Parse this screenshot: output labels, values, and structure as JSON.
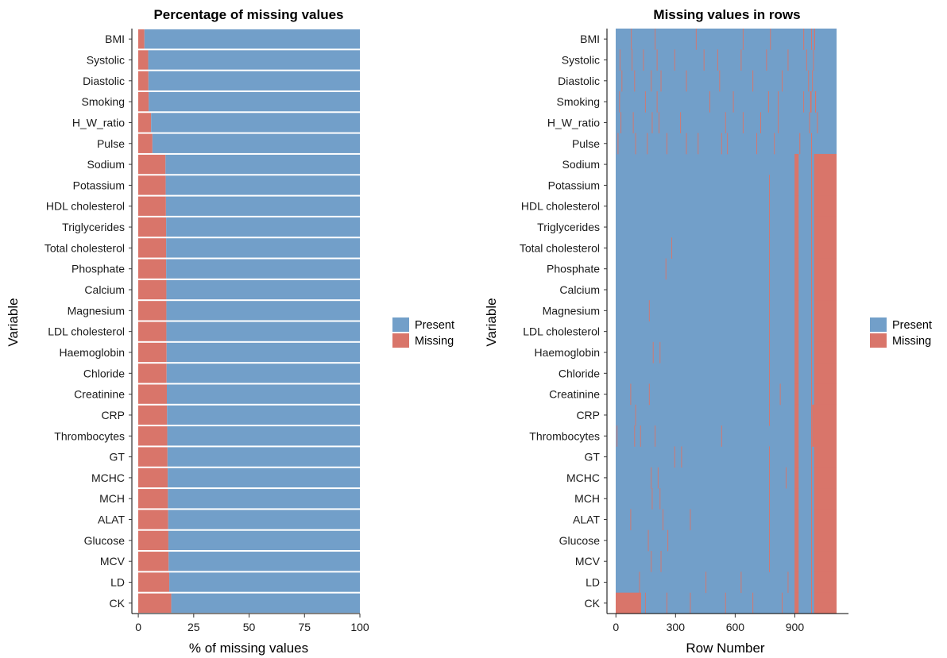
{
  "colors": {
    "present": "#729FC9",
    "missing": "#D9756A"
  },
  "legend": {
    "present": "Present",
    "missing": "Missing"
  },
  "chart_data": [
    {
      "type": "bar",
      "orientation": "horizontal-stacked",
      "title": "Percentage of missing values",
      "xlabel": "% of missing values",
      "ylabel": "Variable",
      "xlim": [
        0,
        100
      ],
      "xticks": [
        0,
        25,
        50,
        75,
        100
      ],
      "grid": false,
      "legend_position": "right",
      "categories": [
        "BMI",
        "Systolic",
        "Diastolic",
        "Smoking",
        "H_W_ratio",
        "Pulse",
        "Sodium",
        "Potassium",
        "HDL cholesterol",
        "Triglycerides",
        "Total cholesterol",
        "Phosphate",
        "Calcium",
        "Magnesium",
        "LDL cholesterol",
        "Haemoglobin",
        "Chloride",
        "Creatinine",
        "CRP",
        "Thrombocytes",
        "GT",
        "MCHC",
        "MCH",
        "ALAT",
        "Glucose",
        "MCV",
        "LD",
        "CK"
      ],
      "series": [
        {
          "name": "Missing",
          "values": [
            2.8,
            4.5,
            4.6,
            4.7,
            5.8,
            6.4,
            12.3,
            12.4,
            12.5,
            12.6,
            12.6,
            12.6,
            12.7,
            12.7,
            12.7,
            12.8,
            12.8,
            12.9,
            13.0,
            13.1,
            13.2,
            13.3,
            13.4,
            13.5,
            13.6,
            13.7,
            14.0,
            14.9
          ]
        },
        {
          "name": "Present",
          "values": [
            97.2,
            95.5,
            95.4,
            95.3,
            94.2,
            93.6,
            87.7,
            87.6,
            87.5,
            87.4,
            87.4,
            87.4,
            87.3,
            87.3,
            87.3,
            87.2,
            87.2,
            87.1,
            87.0,
            86.9,
            86.8,
            86.7,
            86.6,
            86.5,
            86.4,
            86.3,
            86.0,
            85.1
          ]
        }
      ]
    },
    {
      "type": "heatmap",
      "title": "Missing values in rows",
      "xlabel": "Row Number",
      "ylabel": "Variable",
      "xlim": [
        0,
        1130
      ],
      "xticks": [
        0,
        300,
        600,
        900
      ],
      "grid": false,
      "legend_position": "right",
      "categories": [
        "BMI",
        "Systolic",
        "Diastolic",
        "Smoking",
        "H_W_ratio",
        "Pulse",
        "Sodium",
        "Potassium",
        "HDL cholesterol",
        "Triglycerides",
        "Total cholesterol",
        "Phosphate",
        "Calcium",
        "Magnesium",
        "LDL cholesterol",
        "Haemoglobin",
        "Chloride",
        "Creatinine",
        "CRP",
        "Thrombocytes",
        "GT",
        "MCHC",
        "MCH",
        "ALAT",
        "Glucose",
        "MCV",
        "LD",
        "CK"
      ],
      "missing_row_ranges": [
        [
          [
            78,
            80
          ],
          [
            200,
            202
          ],
          [
            410,
            412
          ],
          [
            650,
            652
          ],
          [
            790,
            792
          ],
          [
            960,
            964
          ],
          [
            1000,
            1004
          ],
          [
            1015,
            1020
          ]
        ],
        [
          [
            20,
            22
          ],
          [
            82,
            84
          ],
          [
            140,
            142
          ],
          [
            210,
            213
          ],
          [
            300,
            302
          ],
          [
            450,
            452
          ],
          [
            520,
            522
          ],
          [
            640,
            642
          ],
          [
            770,
            772
          ],
          [
            880,
            882
          ],
          [
            975,
            978
          ],
          [
            1010,
            1013
          ]
        ],
        [
          [
            30,
            32
          ],
          [
            95,
            97
          ],
          [
            180,
            182
          ],
          [
            230,
            232
          ],
          [
            360,
            362
          ],
          [
            530,
            532
          ],
          [
            700,
            702
          ],
          [
            850,
            852
          ],
          [
            985,
            988
          ],
          [
            1005,
            1008
          ]
        ],
        [
          [
            18,
            20
          ],
          [
            150,
            152
          ],
          [
            210,
            212
          ],
          [
            480,
            482
          ],
          [
            600,
            602
          ],
          [
            780,
            782
          ],
          [
            830,
            832
          ],
          [
            960,
            963
          ],
          [
            995,
            1002
          ],
          [
            1020,
            1025
          ]
        ],
        [
          [
            25,
            27
          ],
          [
            88,
            90
          ],
          [
            185,
            187
          ],
          [
            220,
            222
          ],
          [
            330,
            332
          ],
          [
            560,
            562
          ],
          [
            650,
            652
          ],
          [
            740,
            742
          ],
          [
            830,
            832
          ],
          [
            990,
            994
          ],
          [
            1030,
            1034
          ]
        ],
        [
          [
            10,
            12
          ],
          [
            100,
            102
          ],
          [
            160,
            162
          ],
          [
            260,
            262
          ],
          [
            360,
            362
          ],
          [
            420,
            422
          ],
          [
            540,
            542
          ],
          [
            570,
            572
          ],
          [
            720,
            722
          ],
          [
            810,
            812
          ],
          [
            940,
            944
          ],
          [
            1000,
            1004
          ]
        ],
        [
          [
            915,
            936
          ],
          [
            1000,
            1004
          ],
          [
            1015,
            1130
          ]
        ],
        [
          [
            785,
            787
          ],
          [
            915,
            936
          ],
          [
            1000,
            1004
          ],
          [
            1015,
            1130
          ]
        ],
        [
          [
            785,
            787
          ],
          [
            915,
            936
          ],
          [
            1000,
            1004
          ],
          [
            1015,
            1130
          ]
        ],
        [
          [
            785,
            787
          ],
          [
            915,
            936
          ],
          [
            1000,
            1004
          ],
          [
            1015,
            1130
          ]
        ],
        [
          [
            285,
            287
          ],
          [
            785,
            787
          ],
          [
            915,
            936
          ],
          [
            1000,
            1004
          ],
          [
            1015,
            1130
          ]
        ],
        [
          [
            255,
            257
          ],
          [
            785,
            787
          ],
          [
            915,
            936
          ],
          [
            1000,
            1004
          ],
          [
            1015,
            1130
          ]
        ],
        [
          [
            785,
            787
          ],
          [
            915,
            936
          ],
          [
            1000,
            1004
          ],
          [
            1015,
            1130
          ]
        ],
        [
          [
            170,
            172
          ],
          [
            785,
            787
          ],
          [
            915,
            936
          ],
          [
            1000,
            1004
          ],
          [
            1015,
            1130
          ]
        ],
        [
          [
            785,
            787
          ],
          [
            915,
            936
          ],
          [
            1000,
            1004
          ],
          [
            1015,
            1130
          ]
        ],
        [
          [
            190,
            192
          ],
          [
            225,
            227
          ],
          [
            785,
            787
          ],
          [
            915,
            936
          ],
          [
            1000,
            1004
          ],
          [
            1015,
            1130
          ]
        ],
        [
          [
            785,
            787
          ],
          [
            915,
            936
          ],
          [
            1000,
            1004
          ],
          [
            1015,
            1130
          ]
        ],
        [
          [
            75,
            77
          ],
          [
            170,
            172
          ],
          [
            785,
            787
          ],
          [
            840,
            842
          ],
          [
            915,
            936
          ],
          [
            1000,
            1004
          ],
          [
            1015,
            1130
          ]
        ],
        [
          [
            100,
            102
          ],
          [
            785,
            787
          ],
          [
            915,
            936
          ],
          [
            1000,
            1004
          ],
          [
            1005,
            1130
          ]
        ],
        [
          [
            5,
            7
          ],
          [
            95,
            97
          ],
          [
            125,
            127
          ],
          [
            200,
            203
          ],
          [
            540,
            542
          ],
          [
            915,
            936
          ],
          [
            1000,
            1004
          ],
          [
            1005,
            1130
          ]
        ],
        [
          [
            300,
            302
          ],
          [
            335,
            337
          ],
          [
            785,
            787
          ],
          [
            915,
            936
          ],
          [
            1000,
            1004
          ],
          [
            1015,
            1130
          ]
        ],
        [
          [
            180,
            183
          ],
          [
            215,
            217
          ],
          [
            785,
            787
          ],
          [
            870,
            872
          ],
          [
            915,
            936
          ],
          [
            1000,
            1004
          ],
          [
            1015,
            1130
          ]
        ],
        [
          [
            185,
            188
          ],
          [
            225,
            227
          ],
          [
            785,
            787
          ],
          [
            915,
            936
          ],
          [
            1000,
            1004
          ],
          [
            1015,
            1130
          ]
        ],
        [
          [
            75,
            77
          ],
          [
            240,
            242
          ],
          [
            380,
            382
          ],
          [
            785,
            787
          ],
          [
            915,
            936
          ],
          [
            1000,
            1004
          ],
          [
            1015,
            1130
          ]
        ],
        [
          [
            165,
            167
          ],
          [
            265,
            267
          ],
          [
            785,
            787
          ],
          [
            915,
            936
          ],
          [
            1000,
            1004
          ],
          [
            1015,
            1130
          ]
        ],
        [
          [
            180,
            183
          ],
          [
            230,
            232
          ],
          [
            785,
            787
          ],
          [
            915,
            936
          ],
          [
            1000,
            1004
          ],
          [
            1015,
            1130
          ]
        ],
        [
          [
            120,
            122
          ],
          [
            460,
            462
          ],
          [
            640,
            642
          ],
          [
            880,
            882
          ],
          [
            915,
            936
          ],
          [
            1000,
            1004
          ],
          [
            1015,
            1130
          ]
        ],
        [
          [
            0,
            130
          ],
          [
            150,
            152
          ],
          [
            260,
            262
          ],
          [
            380,
            382
          ],
          [
            560,
            562
          ],
          [
            700,
            702
          ],
          [
            850,
            852
          ],
          [
            915,
            936
          ],
          [
            1000,
            1004
          ],
          [
            1015,
            1130
          ]
        ]
      ]
    }
  ]
}
